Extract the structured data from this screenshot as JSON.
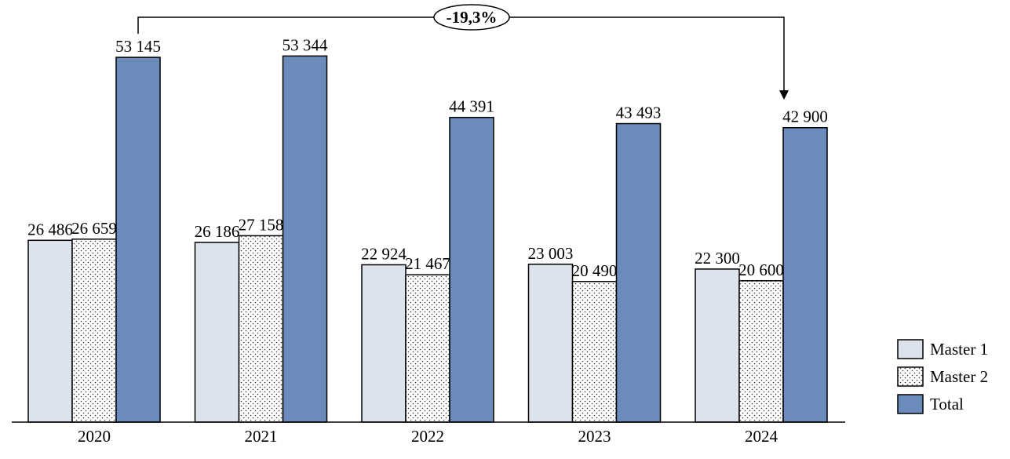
{
  "chart_data": {
    "type": "bar",
    "categories": [
      "2020",
      "2021",
      "2022",
      "2023",
      "2024"
    ],
    "series": [
      {
        "name": "Master 1",
        "values": [
          26486,
          26186,
          22924,
          23003,
          22300
        ],
        "labels": [
          "26 486",
          "26 186",
          "22 924",
          "23 003",
          "22 300"
        ],
        "color": "#dde3ed",
        "pattern": "solid"
      },
      {
        "name": "Master 2",
        "values": [
          26659,
          27158,
          21467,
          20490,
          20600
        ],
        "labels": [
          "26 659",
          "27 158",
          "21 467",
          "20 490",
          "20 600"
        ],
        "color": "#ffffff",
        "pattern": "dotted"
      },
      {
        "name": "Total",
        "values": [
          53145,
          53344,
          44391,
          43493,
          42900
        ],
        "labels": [
          "53 145",
          "53 344",
          "44 391",
          "43 493",
          "42 900"
        ],
        "color": "#6b8cba",
        "pattern": "solid"
      }
    ],
    "ylim": [
      0,
      53500
    ],
    "grid": false,
    "legend_position": "bottom-right",
    "annotation": {
      "text": "-19,3%",
      "from_category": "2020",
      "to_category": "2024",
      "series": "Total"
    }
  }
}
